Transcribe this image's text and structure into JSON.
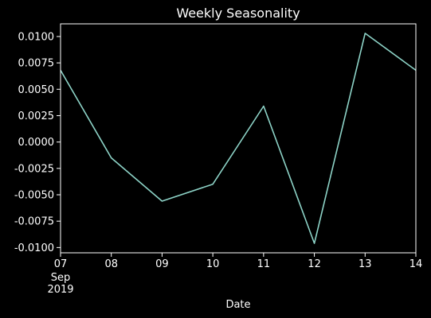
{
  "chart_data": {
    "type": "line",
    "title": "Weekly Seasonality",
    "xlabel": "Date",
    "ylabel": "",
    "x": [
      "07",
      "08",
      "09",
      "10",
      "11",
      "12",
      "13",
      "14"
    ],
    "x_tick_labels": [
      "07",
      "08",
      "09",
      "10",
      "11",
      "12",
      "13",
      "14"
    ],
    "x_first_tick_sublabels": [
      "Sep",
      "2019"
    ],
    "y_tick_labels": [
      "0.0100",
      "0.0075",
      "0.0050",
      "0.0025",
      "0.0000",
      "-0.0025",
      "-0.0050",
      "-0.0075",
      "-0.0100"
    ],
    "y_ticks": [
      0.01,
      0.0075,
      0.005,
      0.0025,
      0.0,
      -0.0025,
      -0.005,
      -0.0075,
      -0.01
    ],
    "ylim": [
      -0.0105,
      0.0112
    ],
    "series": [
      {
        "values": [
          0.0068,
          -0.0015,
          -0.0056,
          -0.004,
          0.0034,
          -0.0096,
          0.0103,
          0.0068
        ]
      }
    ],
    "grid": false,
    "colors": {
      "background": "#000000",
      "line": "#8dd3c7",
      "axes": "#ffffff",
      "text": "#ffffff"
    }
  }
}
